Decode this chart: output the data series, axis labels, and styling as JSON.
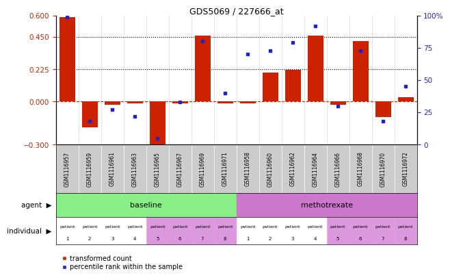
{
  "title": "GDS5069 / 227666_at",
  "samples": [
    "GSM1116957",
    "GSM1116959",
    "GSM1116961",
    "GSM1116963",
    "GSM1116965",
    "GSM1116967",
    "GSM1116969",
    "GSM1116971",
    "GSM1116958",
    "GSM1116960",
    "GSM1116962",
    "GSM1116964",
    "GSM1116966",
    "GSM1116968",
    "GSM1116970",
    "GSM1116972"
  ],
  "transformed_count": [
    0.59,
    -0.18,
    -0.02,
    -0.01,
    -0.32,
    -0.01,
    0.46,
    -0.01,
    -0.01,
    0.2,
    0.22,
    0.46,
    -0.02,
    0.42,
    -0.11,
    0.03
  ],
  "percentile_rank": [
    99,
    18,
    27,
    22,
    5,
    33,
    80,
    40,
    70,
    73,
    79,
    92,
    30,
    73,
    18,
    45
  ],
  "ylim_left": [
    -0.3,
    0.6
  ],
  "ylim_right": [
    0,
    100
  ],
  "yticks_left": [
    -0.3,
    0,
    0.225,
    0.45,
    0.6
  ],
  "yticks_right": [
    0,
    25,
    50,
    75,
    100
  ],
  "hlines": [
    0.45,
    0.225
  ],
  "bar_color": "#cc2200",
  "dot_color": "#2222cc",
  "sample_bg_color": "#cccccc",
  "baseline_color": "#88ee88",
  "methotrexate_color": "#cc77cc",
  "patient_white": "#ffffff",
  "patient_pink": "#dd99dd",
  "baseline_label": "baseline",
  "methotrexate_label": "methotrexate",
  "agent_label": "agent",
  "individual_label": "individual",
  "baseline_indices": [
    0,
    1,
    2,
    3,
    4,
    5,
    6,
    7
  ],
  "methotrexate_indices": [
    8,
    9,
    10,
    11,
    12,
    13,
    14,
    15
  ],
  "patient_labels_top": [
    "patient",
    "patient",
    "patient",
    "patient",
    "patient",
    "patient",
    "patient",
    "patient",
    "patient",
    "patient",
    "patient",
    "patient",
    "patient",
    "patient",
    "patient",
    "patient"
  ],
  "patient_numbers": [
    "1",
    "2",
    "3",
    "4",
    "5",
    "6",
    "7",
    "8",
    "1",
    "2",
    "3",
    "4",
    "5",
    "6",
    "7",
    "8"
  ],
  "legend_bar_label": "transformed count",
  "legend_dot_label": "percentile rank within the sample"
}
